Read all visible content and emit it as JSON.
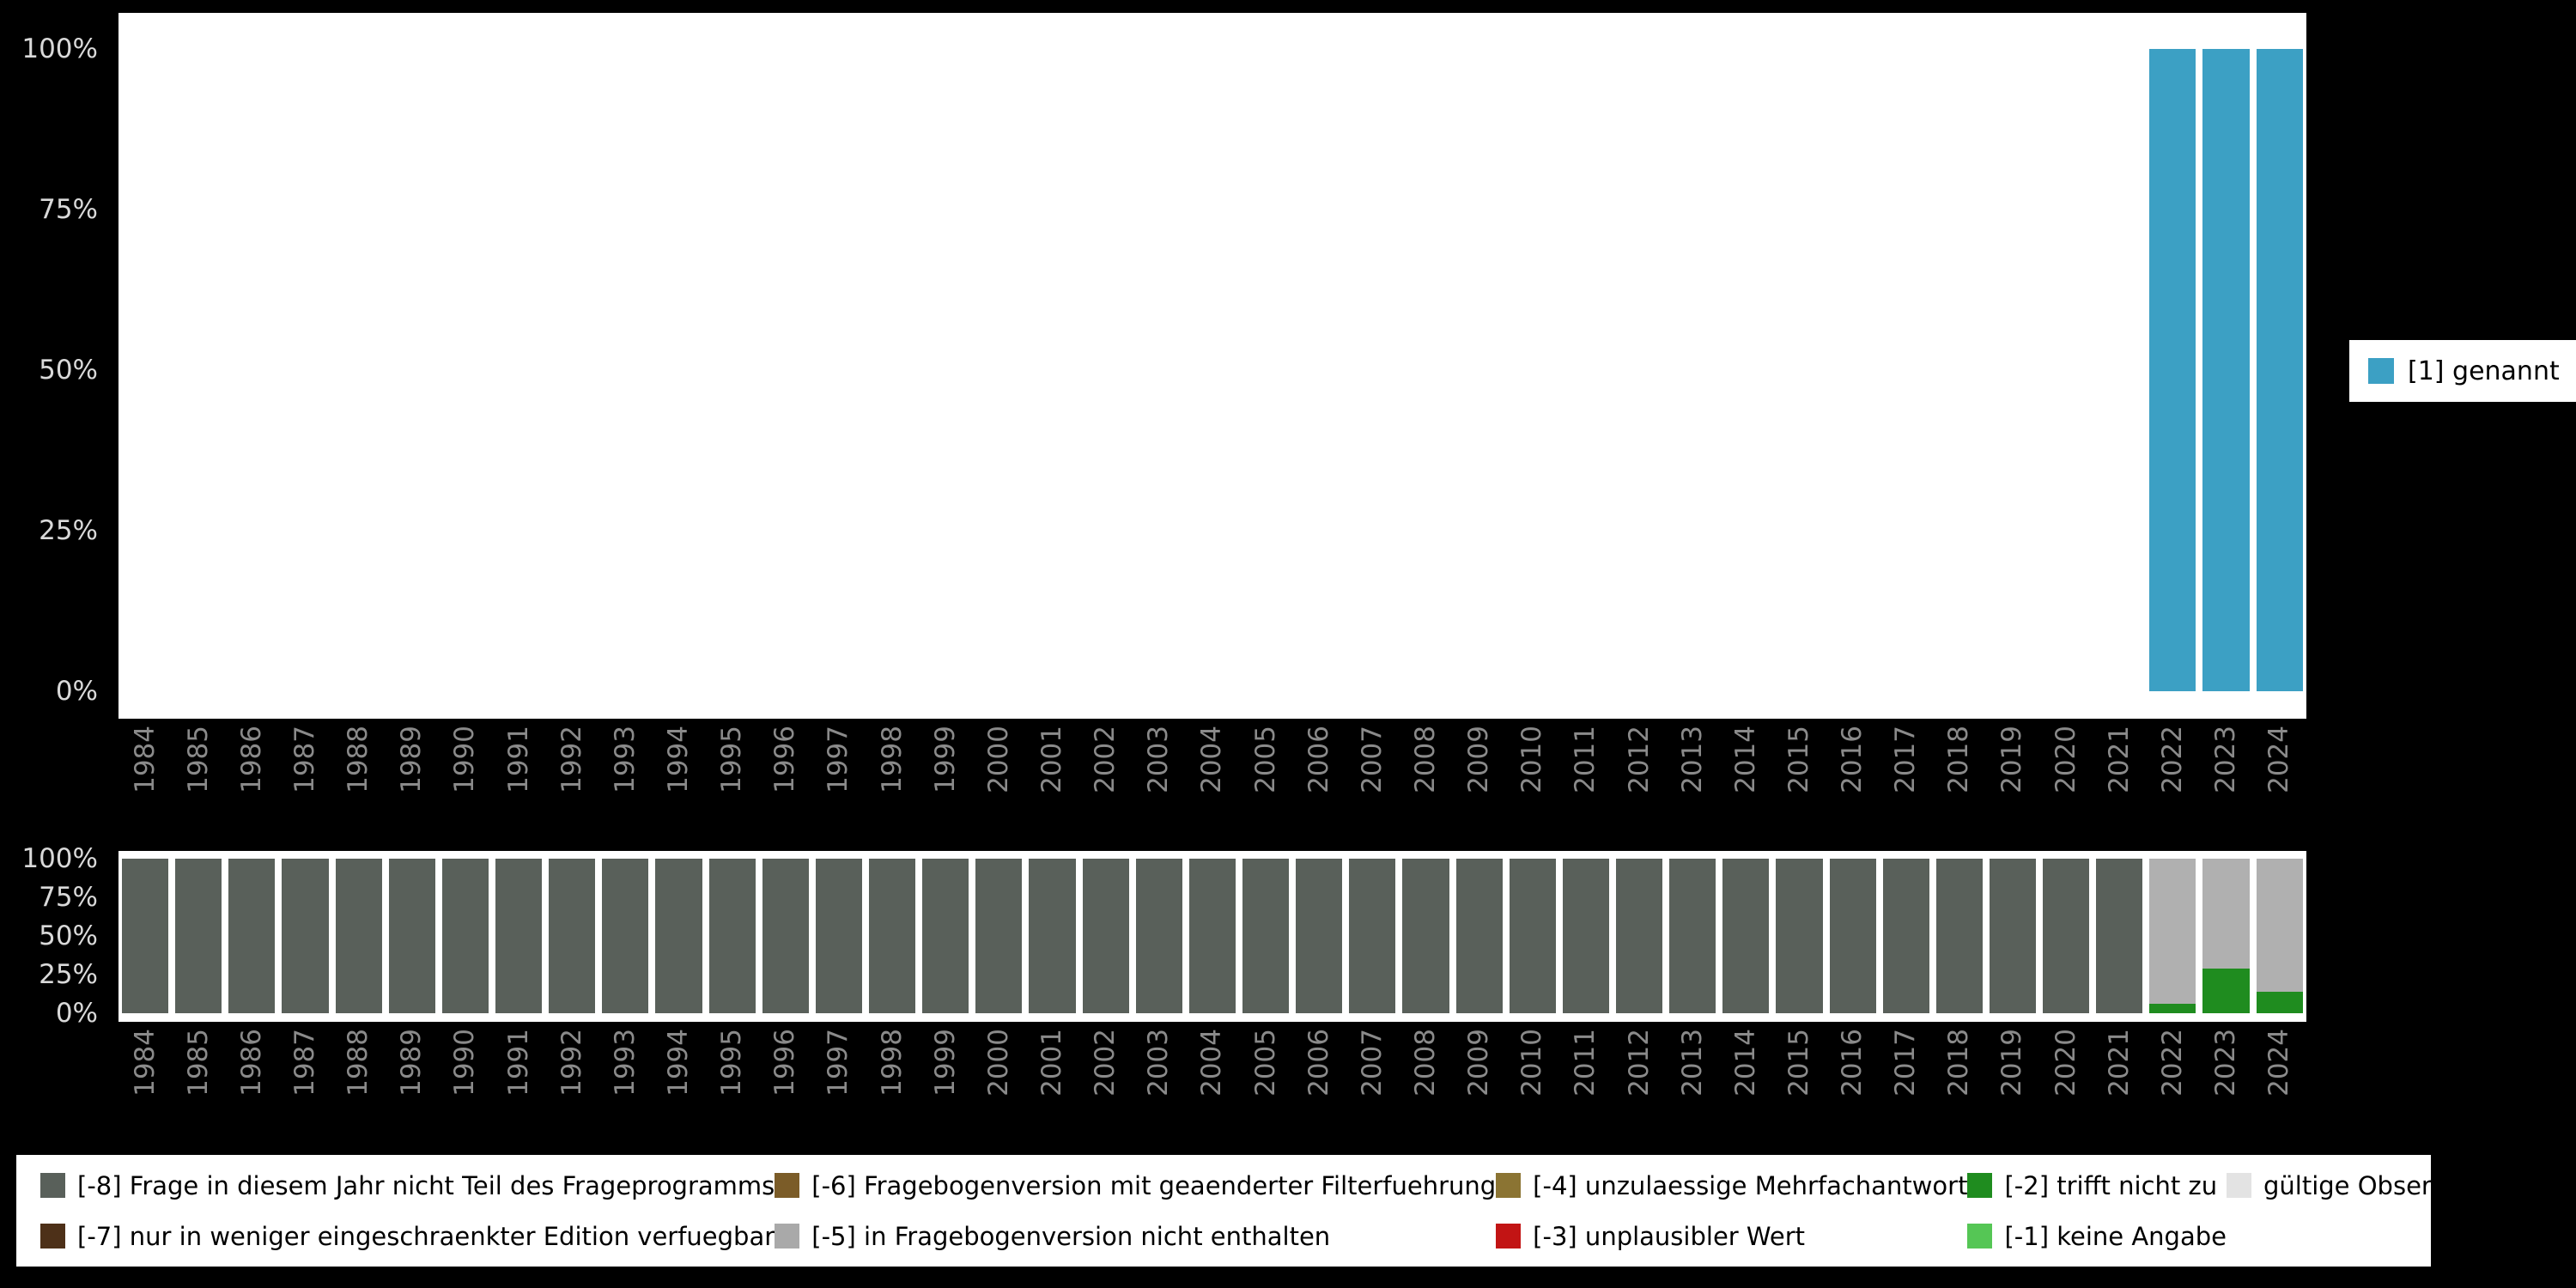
{
  "page": {
    "background": "#000000"
  },
  "legend_right": {
    "label": "[1] genannt",
    "color": "#3ca0c4"
  },
  "chart_data": [
    {
      "type": "bar",
      "subtype": "stacked-percent",
      "title": "",
      "xlabel": "",
      "ylabel": "",
      "ylim": [
        0,
        100
      ],
      "grid": false,
      "legend_position": "right",
      "yticks": [
        "100%",
        "75%",
        "50%",
        "25%",
        "0%"
      ],
      "categories": [
        "1984",
        "1985",
        "1986",
        "1987",
        "1988",
        "1989",
        "1990",
        "1991",
        "1992",
        "1993",
        "1994",
        "1995",
        "1996",
        "1997",
        "1998",
        "1999",
        "2000",
        "2001",
        "2002",
        "2003",
        "2004",
        "2005",
        "2006",
        "2007",
        "2008",
        "2009",
        "2010",
        "2011",
        "2012",
        "2013",
        "2014",
        "2015",
        "2016",
        "2017",
        "2018",
        "2019",
        "2020",
        "2021",
        "2022",
        "2023",
        "2024"
      ],
      "series": [
        {
          "name": "[1] genannt",
          "color": "#3ca0c4",
          "values": [
            0,
            0,
            0,
            0,
            0,
            0,
            0,
            0,
            0,
            0,
            0,
            0,
            0,
            0,
            0,
            0,
            0,
            0,
            0,
            0,
            0,
            0,
            0,
            0,
            0,
            0,
            0,
            0,
            0,
            0,
            0,
            0,
            0,
            0,
            0,
            0,
            0,
            0,
            100,
            100,
            100
          ]
        }
      ]
    },
    {
      "type": "bar",
      "subtype": "stacked-percent",
      "title": "",
      "xlabel": "",
      "ylabel": "",
      "ylim": [
        0,
        100
      ],
      "grid": false,
      "legend_position": "bottom",
      "yticks": [
        "100%",
        "75%",
        "50%",
        "25%",
        "0%"
      ],
      "categories": [
        "1984",
        "1985",
        "1986",
        "1987",
        "1988",
        "1989",
        "1990",
        "1991",
        "1992",
        "1993",
        "1994",
        "1995",
        "1996",
        "1997",
        "1998",
        "1999",
        "2000",
        "2001",
        "2002",
        "2003",
        "2004",
        "2005",
        "2006",
        "2007",
        "2008",
        "2009",
        "2010",
        "2011",
        "2012",
        "2013",
        "2014",
        "2015",
        "2016",
        "2017",
        "2018",
        "2019",
        "2020",
        "2021",
        "2022",
        "2023",
        "2024"
      ],
      "series": [
        {
          "name": "[-8] Frage in diesem Jahr nicht Teil des Frageprogramms",
          "color": "#59605a",
          "values": [
            100,
            100,
            100,
            100,
            100,
            100,
            100,
            100,
            100,
            100,
            100,
            100,
            100,
            100,
            100,
            100,
            100,
            100,
            100,
            100,
            100,
            100,
            100,
            100,
            100,
            100,
            100,
            100,
            100,
            100,
            100,
            100,
            100,
            100,
            100,
            100,
            100,
            100,
            0,
            0,
            0
          ]
        },
        {
          "name": "[-2] trifft nicht zu",
          "color": "#1f8c1f",
          "values": [
            0,
            0,
            0,
            0,
            0,
            0,
            0,
            0,
            0,
            0,
            0,
            0,
            0,
            0,
            0,
            0,
            0,
            0,
            0,
            0,
            0,
            0,
            0,
            0,
            0,
            0,
            0,
            0,
            0,
            0,
            0,
            0,
            0,
            0,
            0,
            0,
            0,
            0,
            6,
            29,
            14
          ]
        },
        {
          "name": "gültige Observationen",
          "color": "#b0b0b0",
          "values": [
            0,
            0,
            0,
            0,
            0,
            0,
            0,
            0,
            0,
            0,
            0,
            0,
            0,
            0,
            0,
            0,
            0,
            0,
            0,
            0,
            0,
            0,
            0,
            0,
            0,
            0,
            0,
            0,
            0,
            0,
            0,
            0,
            0,
            0,
            0,
            0,
            0,
            0,
            94,
            71,
            86
          ]
        }
      ]
    }
  ],
  "legend_bottom": {
    "items": [
      {
        "label": "[-8] Frage in diesem Jahr nicht Teil des Frageprogramms",
        "color": "#59605a"
      },
      {
        "label": "[-7] nur in weniger eingeschraenkter Edition verfuegbar",
        "color": "#4d3018"
      },
      {
        "label": "[-6] Fragebogenversion mit geaenderter Filterfuehrung",
        "color": "#7b5c28"
      },
      {
        "label": "[-5] in Fragebogenversion nicht enthalten",
        "color": "#a9a9a9"
      },
      {
        "label": "[-4] unzulaessige Mehrfachantwort",
        "color": "#8b7433"
      },
      {
        "label": "[-3] unplausibler Wert",
        "color": "#c21414"
      },
      {
        "label": "[-2] trifft nicht zu",
        "color": "#1f8c1f"
      },
      {
        "label": "[-1] keine Angabe",
        "color": "#55c655"
      },
      {
        "label": "gültige Observationen",
        "color": "#e3e3e3"
      }
    ]
  }
}
